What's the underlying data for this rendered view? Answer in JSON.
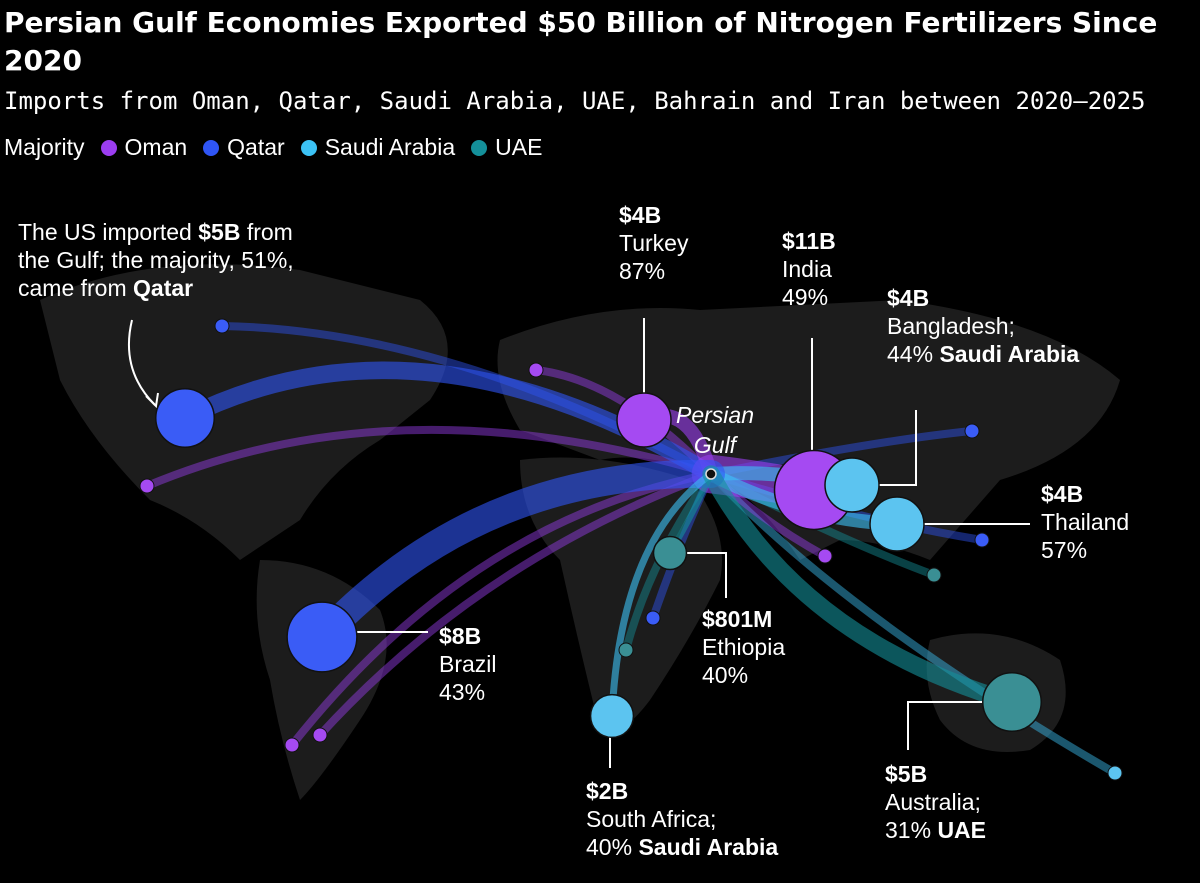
{
  "header": {
    "title": "Persian Gulf Economies Exported $50 Billion of Nitrogen Fertilizers Since 2020",
    "subtitle": "Imports from Oman, Qatar, Saudi Arabia, UAE, Bahrain and Iran between 2020–2025"
  },
  "legend": {
    "label": "Majority",
    "items": [
      {
        "name": "Oman",
        "color": "#9b3df0"
      },
      {
        "name": "Qatar",
        "color": "#2f55f5"
      },
      {
        "name": "Saudi Arabia",
        "color": "#3cc2f5"
      },
      {
        "name": "UAE",
        "color": "#14909a"
      }
    ]
  },
  "origin_label": {
    "line1": "Persian",
    "line2": "Gulf"
  },
  "us_annotation": {
    "pre": "The US imported ",
    "value": "$5B",
    "mid": " from",
    "line2": "the Gulf; the majority, 51%,",
    "line3_pre": "came from ",
    "source": "Qatar"
  },
  "destinations": [
    {
      "country": "United States",
      "value": "$5B",
      "value_billions": 5,
      "majority_pct": 51,
      "majority": "Qatar"
    },
    {
      "country": "Turkey",
      "value": "$4B",
      "value_billions": 4,
      "pct_label": "87%",
      "majority": "Oman"
    },
    {
      "country": "India",
      "value": "$11B",
      "value_billions": 11,
      "pct_label": "49%",
      "majority": "Oman"
    },
    {
      "country": "Bangladesh;",
      "value": "$4B",
      "value_billions": 4,
      "pct_label": "44%",
      "majority": "Saudi Arabia",
      "majority_label": "Saudi Arabia"
    },
    {
      "country": "Thailand",
      "value": "$4B",
      "value_billions": 4,
      "pct_label": "57%",
      "majority": "Saudi Arabia"
    },
    {
      "country": "Brazil",
      "value": "$8B",
      "value_billions": 8,
      "pct_label": "43%",
      "majority": "Qatar"
    },
    {
      "country": "Ethiopia",
      "value": "$801M",
      "value_billions": 0.801,
      "pct_label": "40%",
      "majority": "UAE"
    },
    {
      "country": "South Africa;",
      "value": "$2B",
      "value_billions": 2,
      "pct_label": "40%",
      "majority": "Saudi Arabia",
      "majority_label": "Saudi Arabia"
    },
    {
      "country": "Australia;",
      "value": "$5B",
      "value_billions": 5,
      "pct_label": "31%",
      "majority": "UAE",
      "majority_label": "UAE"
    }
  ]
}
